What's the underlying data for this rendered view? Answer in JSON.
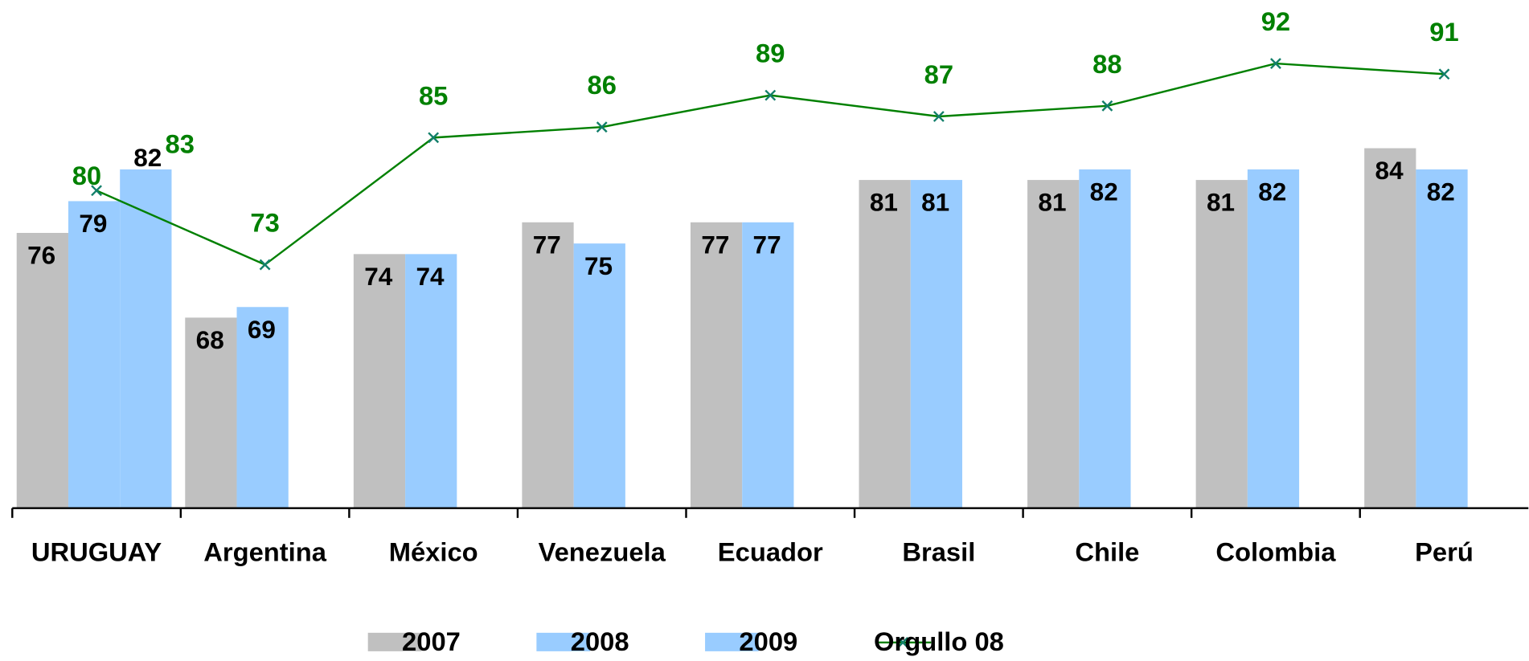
{
  "chart_data": {
    "type": "bar",
    "categories": [
      "URUGUAY",
      "Argentina",
      "México",
      "Venezuela",
      "Ecuador",
      "Brasil",
      "Chile",
      "Colombia",
      "Perú"
    ],
    "series": [
      {
        "name": "2007",
        "color": "#c0c0c0",
        "values": [
          76,
          68,
          74,
          77,
          77,
          81,
          81,
          81,
          84
        ]
      },
      {
        "name": "2008",
        "color": "#99ccff",
        "values": [
          79,
          69,
          74,
          75,
          77,
          81,
          82,
          82,
          82
        ]
      },
      {
        "name": "2009",
        "color": "#99ccff",
        "values": [
          82,
          null,
          null,
          null,
          null,
          null,
          null,
          null,
          null
        ]
      },
      {
        "name": "Orgullo 08",
        "type": "line",
        "color": "#008000",
        "values": [
          80,
          73,
          85,
          86,
          89,
          87,
          88,
          92,
          91
        ]
      }
    ],
    "annotations": [
      "83"
    ],
    "ylim": [
      50,
      98
    ],
    "legend": "bottom"
  }
}
